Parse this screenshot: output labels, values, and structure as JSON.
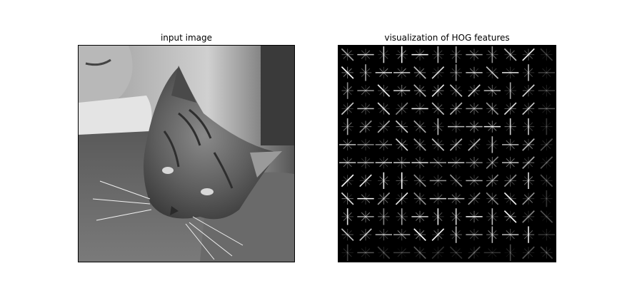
{
  "figure": {
    "background": "#ffffff",
    "panels": [
      {
        "title": "input image",
        "content": "grayscale cat photo"
      },
      {
        "title": "visualization of HOG features",
        "content": "HOG cell glyphs on black"
      }
    ]
  },
  "hog": {
    "grid_cols": 12,
    "grid_rows": 12,
    "background": "#000000",
    "stroke": "#ffffff"
  },
  "photo": {
    "sky": "#8c8c8c",
    "cat_fur": "#6e6e6e",
    "shirt": "#3d3d3d",
    "hand": "#bdbdbd"
  }
}
